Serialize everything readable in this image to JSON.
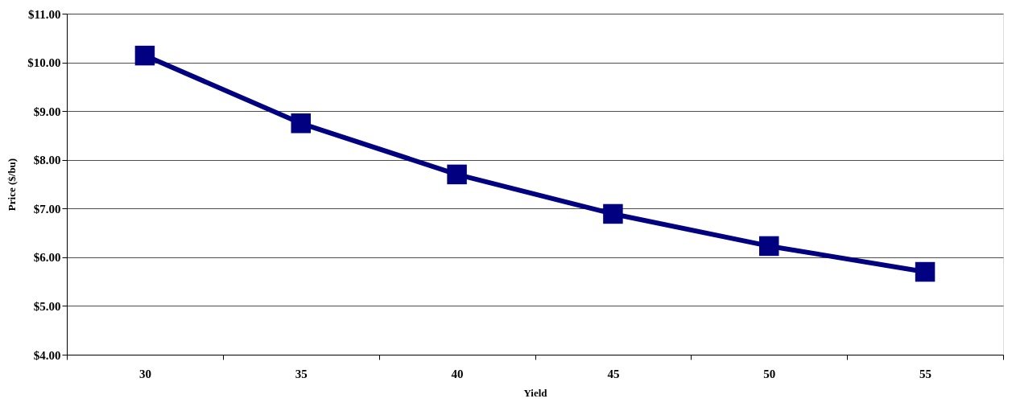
{
  "chart_data": {
    "type": "line",
    "xlabel": "Yield",
    "ylabel": "Price ($/bu)",
    "categories": [
      "30",
      "35",
      "40",
      "45",
      "50",
      "55"
    ],
    "series": [
      {
        "color": "#000080",
        "values": [
          10.14,
          8.75,
          7.7,
          6.89,
          6.23,
          5.7
        ]
      }
    ],
    "ylim": [
      4,
      11
    ],
    "yticks": [
      {
        "value": 4,
        "label": "$4.00"
      },
      {
        "value": 5,
        "label": "$5.00"
      },
      {
        "value": 6,
        "label": "$6.00"
      },
      {
        "value": 7,
        "label": "$7.00"
      },
      {
        "value": 8,
        "label": "$8.00"
      },
      {
        "value": 9,
        "label": "$9.00"
      },
      {
        "value": 10,
        "label": "$10.00"
      },
      {
        "value": 11,
        "label": "$11.00"
      }
    ],
    "grid": "y",
    "marker": "square",
    "line_style": "solid"
  }
}
